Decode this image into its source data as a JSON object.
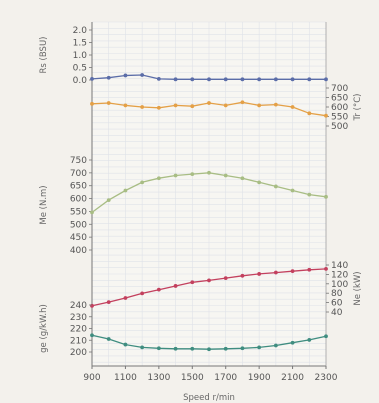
{
  "chart_data": {
    "type": "line",
    "grid": true,
    "x": [
      900,
      1000,
      1100,
      1200,
      1300,
      1400,
      1500,
      1600,
      1700,
      1800,
      1900,
      2000,
      2100,
      2200,
      2300
    ],
    "x_ticks": [
      "900",
      "1100",
      "1300",
      "1500",
      "1700",
      "1900",
      "2100",
      "2300"
    ],
    "x_label": "Speed  r/min",
    "panels": [
      {
        "ylabel": "Rs (BSU)",
        "axis_side": "left",
        "ticks": [
          "2.0",
          "1.5",
          "1.0",
          "0.5",
          "0.0"
        ],
        "ylim": [
          0,
          2.2
        ],
        "color": "#5b6da8",
        "values": [
          0.05,
          0.1,
          0.2,
          0.22,
          0.05,
          0.03,
          0.03,
          0.03,
          0.03,
          0.03,
          0.03,
          0.03,
          0.03,
          0.03,
          0.03
        ]
      },
      {
        "ylabel": "Tr (°C)",
        "axis_side": "right",
        "ticks": [
          "700",
          "650",
          "600",
          "550",
          "500"
        ],
        "ylim": [
          480,
          720
        ],
        "color": "#e4a046",
        "values": [
          620,
          625,
          610,
          600,
          595,
          610,
          605,
          625,
          610,
          630,
          610,
          615,
          600,
          560,
          545
        ]
      },
      {
        "ylabel": "Me (N.m)",
        "axis_side": "left",
        "ticks": [
          "750",
          "700",
          "650",
          "600",
          "550",
          "500",
          "450",
          "400"
        ],
        "ylim": [
          370,
          780
        ],
        "color": "#a8bd84",
        "values": [
          515,
          560,
          595,
          625,
          640,
          650,
          655,
          660,
          650,
          640,
          625,
          610,
          595,
          580,
          572
        ]
      },
      {
        "ylabel": "Ne (kW)",
        "axis_side": "right",
        "ticks": [
          "140",
          "120",
          "100",
          "80",
          "60",
          "40"
        ],
        "ylim": [
          10,
          155
        ],
        "color": "#c3405e",
        "values": [
          45,
          53,
          62,
          72,
          80,
          88,
          96,
          100,
          105,
          110,
          114,
          117,
          120,
          123,
          125
        ]
      },
      {
        "ylabel": "ge (g/kW.h)",
        "axis_side": "left",
        "ticks": [
          "240",
          "230",
          "220",
          "210",
          "200"
        ],
        "ylim": [
          196,
          252
        ],
        "color": "#3f8d80",
        "values": [
          214,
          210,
          204,
          201,
          200,
          199.5,
          199.5,
          199,
          199.5,
          200,
          201,
          203,
          206,
          209,
          213
        ]
      }
    ]
  }
}
